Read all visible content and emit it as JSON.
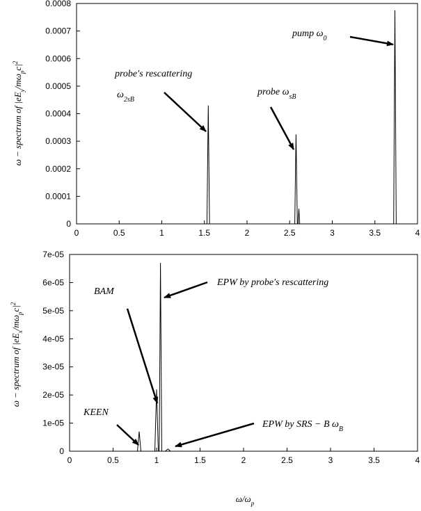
{
  "chart_data": [
    {
      "type": "line",
      "ylabel": "ω − spectrum of |eE_y/mω_pc|²",
      "xlabel": "",
      "xlim": [
        0,
        4
      ],
      "ylim": [
        0,
        0.0008
      ],
      "xticks": [
        "0",
        "0.5",
        "1",
        "1.5",
        "2",
        "2.5",
        "3",
        "3.5",
        "4"
      ],
      "yticks": [
        "0",
        "0.0001",
        "0.0002",
        "0.0003",
        "0.0004",
        "0.0005",
        "0.0006",
        "0.0007",
        "0.0008"
      ],
      "grid": false,
      "series": [
        {
          "points": [
            [
              0,
              0
            ],
            [
              1.53,
              0
            ],
            [
              1.545,
              0.00043
            ],
            [
              1.56,
              0
            ],
            [
              2.56,
              0
            ],
            [
              2.575,
              0.000325
            ],
            [
              2.59,
              0
            ],
            [
              2.598,
              0
            ],
            [
              2.608,
              5.5e-05
            ],
            [
              2.618,
              0
            ],
            [
              3.72,
              0
            ],
            [
              3.735,
              0.000775
            ],
            [
              3.75,
              0
            ],
            [
              4,
              0
            ]
          ]
        }
      ],
      "annotations": [
        {
          "text": "probe's rescattering",
          "x": 1.55,
          "y": 0.00043
        },
        {
          "text": "ω_2sB",
          "x": 1.55,
          "y": 0.00043
        },
        {
          "text": "probe  ω_sB",
          "x": 2.575,
          "y": 0.000325
        },
        {
          "text": "pump  ω_0",
          "x": 3.735,
          "y": 0.00066
        }
      ]
    },
    {
      "type": "line",
      "ylabel": "ω − spectrum of |eE_x/mω_pc|²",
      "xlabel": "ω/ω_p",
      "xlim": [
        0,
        4
      ],
      "ylim": [
        0,
        7e-05
      ],
      "xticks": [
        "0",
        "0.5",
        "1",
        "1.5",
        "2",
        "2.5",
        "3",
        "3.5",
        "4"
      ],
      "yticks": [
        "0",
        "1e-05",
        "2e-05",
        "3e-05",
        "4e-05",
        "5e-05",
        "6e-05",
        "7e-05"
      ],
      "grid": false,
      "series": [
        {
          "points": [
            [
              0,
              0
            ],
            [
              0.78,
              0
            ],
            [
              0.8,
              7e-06
            ],
            [
              0.82,
              0
            ],
            [
              0.98,
              0
            ],
            [
              1.0,
              2.2e-05
            ],
            [
              1.02,
              0
            ],
            [
              1.03,
              0
            ],
            [
              1.045,
              6.7e-05
            ],
            [
              1.06,
              0
            ],
            [
              1.1,
              0
            ],
            [
              1.13,
              8e-07
            ],
            [
              1.16,
              0
            ],
            [
              4,
              0
            ]
          ]
        }
      ],
      "annotations": [
        {
          "text": "BAM",
          "x": 1.0,
          "y": 2.2e-05
        },
        {
          "text": "EPW by probe's rescattering",
          "x": 1.045,
          "y": 5.5e-05
        },
        {
          "text": "KEEN",
          "x": 0.8,
          "y": 7e-06
        },
        {
          "text": "EPW by SRS − B    ω_B",
          "x": 1.15,
          "y": 8e-07
        }
      ]
    }
  ]
}
